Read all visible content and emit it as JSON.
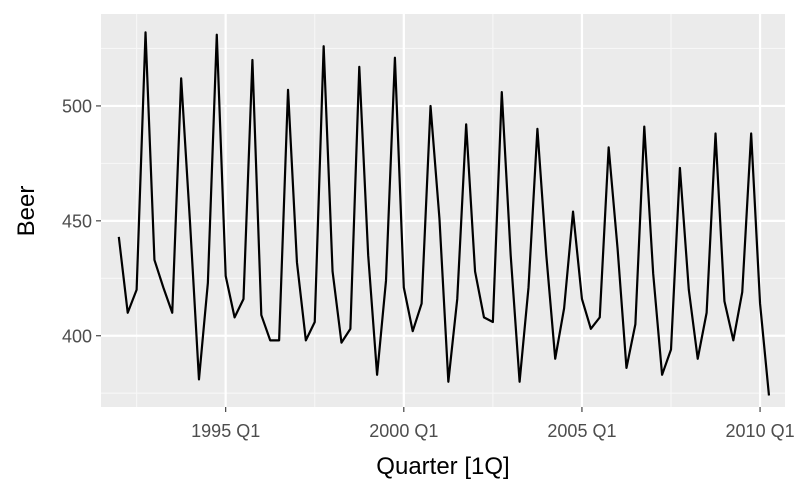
{
  "chart_data": {
    "type": "line",
    "title": "",
    "xlabel": "Quarter [1Q]",
    "ylabel": "Beer",
    "x_start": "1992 Q1",
    "x_end": "2010 Q2",
    "xlim": [
      1991.5,
      2010.7
    ],
    "ylim": [
      369,
      540
    ],
    "x_ticks": [
      {
        "value": 1995,
        "label": "1995 Q1"
      },
      {
        "value": 2000,
        "label": "2000 Q1"
      },
      {
        "value": 2005,
        "label": "2005 Q1"
      },
      {
        "value": 2010,
        "label": "2010 Q1"
      }
    ],
    "y_ticks": [
      400,
      450,
      500
    ],
    "grid": true,
    "colors": {
      "panel": "#ebebeb",
      "grid_major": "#ffffff",
      "grid_minor": "#f7f7f7",
      "line": "#000000"
    },
    "series": [
      {
        "name": "Beer",
        "values": [
          443,
          410,
          420,
          532,
          433,
          421,
          410,
          512,
          449,
          381,
          423,
          531,
          426,
          408,
          416,
          520,
          409,
          398,
          398,
          507,
          432,
          398,
          406,
          526,
          428,
          397,
          403,
          517,
          435,
          383,
          424,
          521,
          421,
          402,
          414,
          500,
          451,
          380,
          416,
          492,
          428,
          408,
          406,
          506,
          435,
          380,
          421,
          490,
          435,
          390,
          412,
          454,
          416,
          403,
          408,
          482,
          438,
          386,
          405,
          491,
          427,
          383,
          394,
          473,
          420,
          390,
          410,
          488,
          415,
          398,
          419,
          488,
          414,
          374
        ]
      }
    ]
  }
}
